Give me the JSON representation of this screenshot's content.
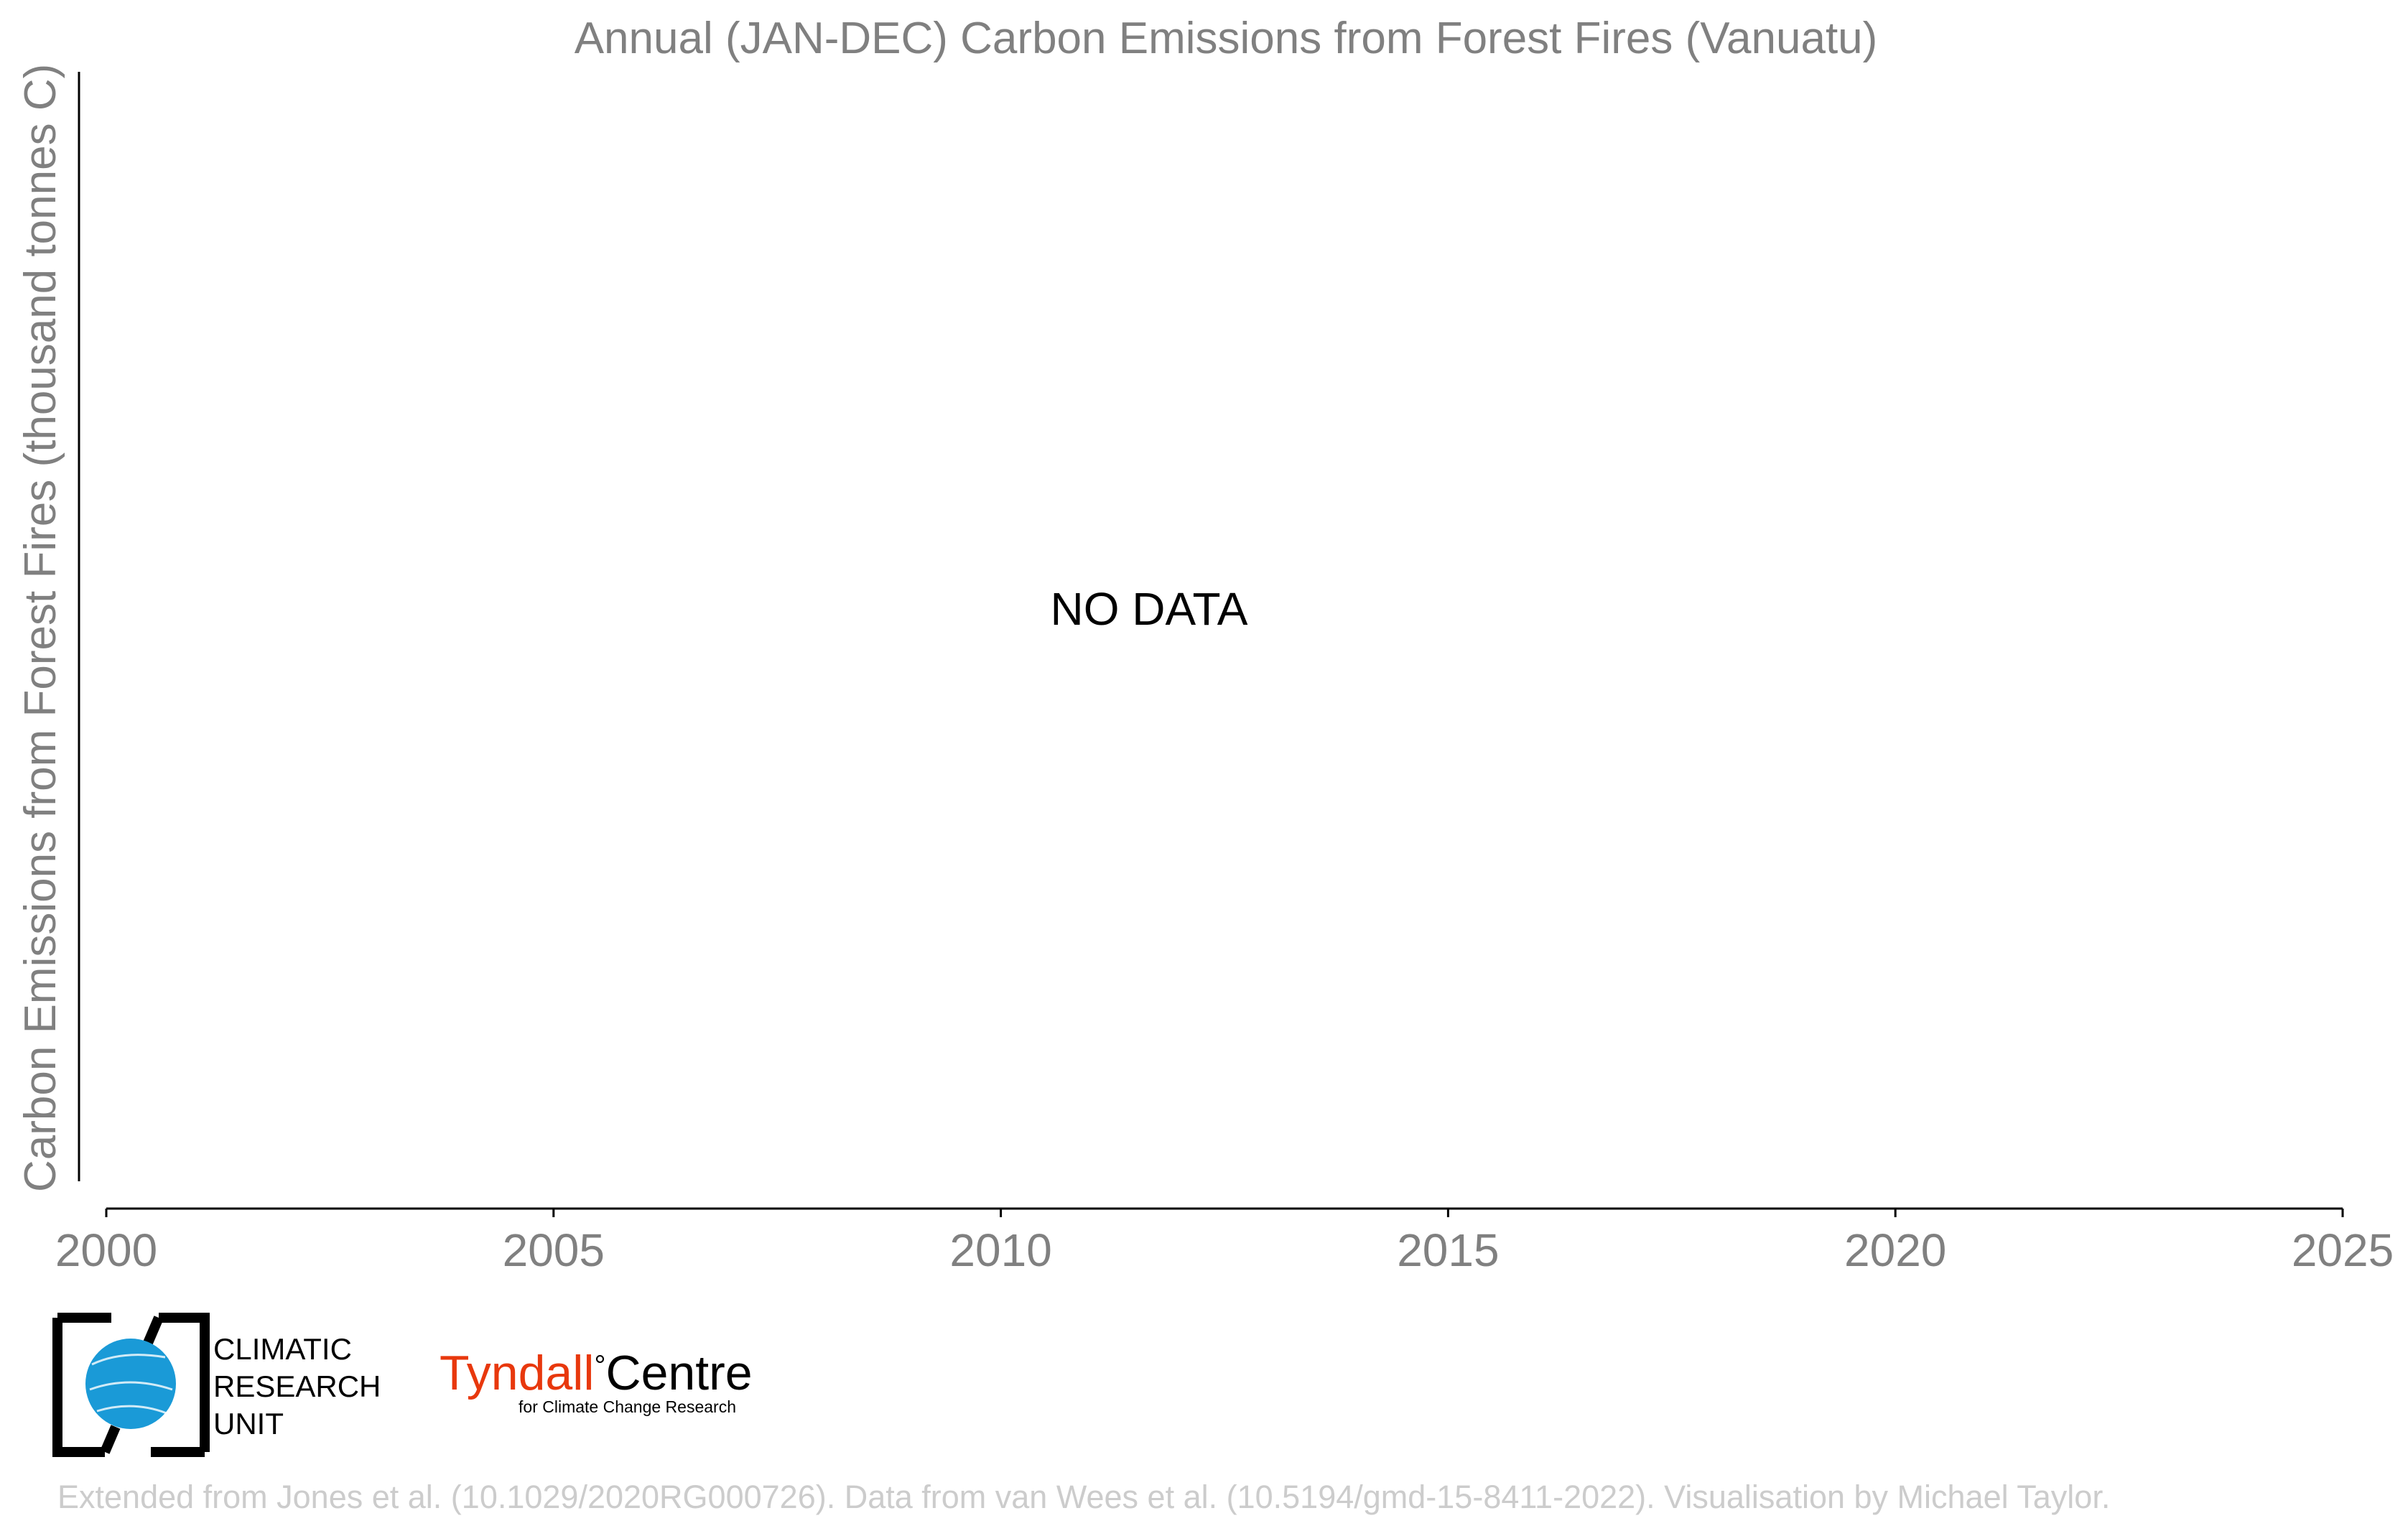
{
  "chart_data": {
    "type": "bar",
    "title": "Annual (JAN-DEC) Carbon Emissions from Forest Fires (Vanuatu)",
    "xlabel": "",
    "ylabel": "Carbon Emissions from Forest Fires (thousand tonnes C)",
    "xlim": [
      2000,
      2025
    ],
    "x_ticks": [
      "2000",
      "2005",
      "2010",
      "2015",
      "2020",
      "2025"
    ],
    "categories": [],
    "values": [],
    "annotation": "NO DATA",
    "grid": false
  },
  "logos": {
    "cru": {
      "line1": "CLIMATIC",
      "line2": "RESEARCH",
      "line3": "UNIT"
    },
    "tyndall": {
      "name_part1": "Tyndall",
      "degree": "°",
      "name_part2": "Centre",
      "subtitle": "for Climate Change Research"
    }
  },
  "credit": "Extended from Jones et al. (10.1029/2020RG000726). Data from van Wees et al. (10.5194/gmd-15-8411-2022). Visualisation by Michael Taylor.",
  "colors": {
    "text_gray": "#808080",
    "axis": "#000000",
    "credit_gray": "#cccccc",
    "cru_blue": "#1a9ad7",
    "tyndall_red": "#e8380d"
  }
}
